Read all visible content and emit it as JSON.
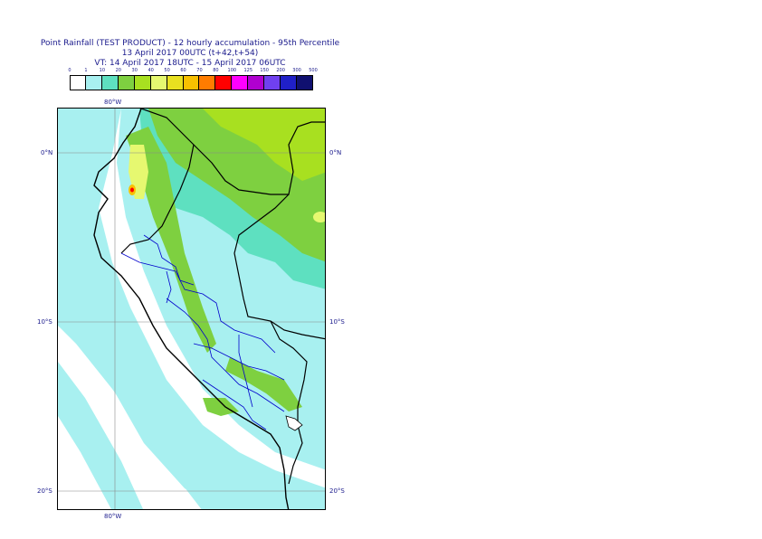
{
  "header": {
    "line1": "Point Rainfall (TEST PRODUCT) - 12 hourly accumulation - 95th Percentile",
    "line2": "13 April 2017 00UTC (t+42,t+54)",
    "line3": "VT: 14 April 2017 18UTC - 15 April 2017 06UTC"
  },
  "legend": {
    "tick_labels": [
      "0",
      "1",
      "10",
      "20",
      "30",
      "40",
      "50",
      "60",
      "70",
      "80",
      "100",
      "125",
      "150",
      "200",
      "300",
      "500"
    ],
    "colors": [
      "#ffffff",
      "#a8f0f0",
      "#5ee0c0",
      "#7ed040",
      "#a8e020",
      "#e6f870",
      "#e8e020",
      "#f8c000",
      "#ff7c00",
      "#ff0000",
      "#ff00ff",
      "#b000d0",
      "#7040f0",
      "#2020c8",
      "#101070"
    ]
  },
  "map": {
    "lon_labels_top": [
      "80°W"
    ],
    "lon_labels_bottom": [
      "80°W"
    ],
    "lat_labels_left": [
      "0°N",
      "10°S",
      "20°S"
    ],
    "lat_labels_right": [
      "0°N",
      "10°S",
      "20°S"
    ],
    "colors": {
      "ocean_light": "#a8f0f0",
      "mid": "#5ee0c0",
      "green": "#7ed040",
      "lime": "#a8e020",
      "yellow": "#e6f870",
      "orange": "#f8c000",
      "red": "#ff0000",
      "coast": "#000000",
      "admin": "#0000cc",
      "grid": "#888888"
    }
  }
}
